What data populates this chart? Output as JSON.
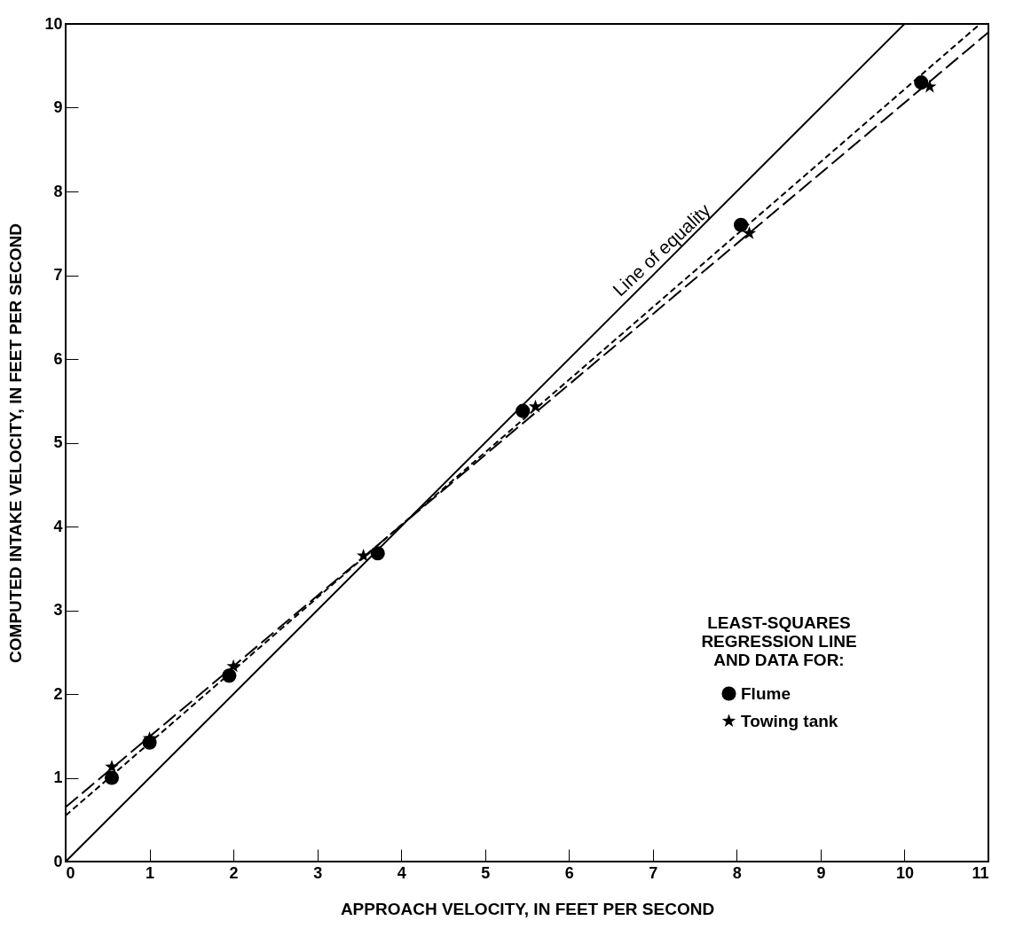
{
  "chart_data": {
    "type": "scatter",
    "xlabel": "APPROACH VELOCITY, IN FEET PER SECOND",
    "ylabel": "COMPUTED INTAKE VELOCITY, IN FEET PER SECOND",
    "legend_title": "LEAST-SQUARES REGRESSION LINE AND DATA FOR:",
    "legend": "bottom right",
    "grid": false,
    "xlim": [
      0,
      11
    ],
    "ylim": [
      0,
      10
    ],
    "xticks": [
      0,
      1,
      2,
      3,
      4,
      5,
      6,
      7,
      8,
      9,
      10,
      11
    ],
    "yticks": [
      0,
      1,
      2,
      3,
      4,
      5,
      6,
      7,
      8,
      9,
      10
    ],
    "series": [
      {
        "name": "Line of equality",
        "type": "line",
        "color": "#000000",
        "line_style": "solid",
        "marker": "none",
        "x": [
          0,
          10
        ],
        "values": [
          0,
          10
        ]
      },
      {
        "type": "line",
        "color": "#000000",
        "line_style": "dashed",
        "marker": "none",
        "x": [
          0,
          10.9
        ],
        "values": [
          0.55,
          10
        ]
      },
      {
        "type": "line",
        "color": "#000000",
        "line_style": "dashed",
        "marker": "none",
        "x": [
          0,
          11
        ],
        "values": [
          0.65,
          9.9
        ]
      },
      {
        "name": "Flume",
        "color": "#000000",
        "marker": "circle",
        "x": [
          0.55,
          1.0,
          1.95,
          3.72,
          5.45,
          8.05,
          10.2
        ],
        "values": [
          1.0,
          1.42,
          2.22,
          3.68,
          5.38,
          7.6,
          9.3
        ]
      },
      {
        "name": "Towing tank",
        "color": "#000000",
        "marker": "star",
        "x": [
          0.55,
          1.0,
          2.0,
          3.55,
          5.6,
          8.15,
          10.3
        ],
        "values": [
          1.13,
          1.47,
          2.33,
          3.65,
          5.43,
          7.5,
          9.25
        ]
      }
    ]
  }
}
